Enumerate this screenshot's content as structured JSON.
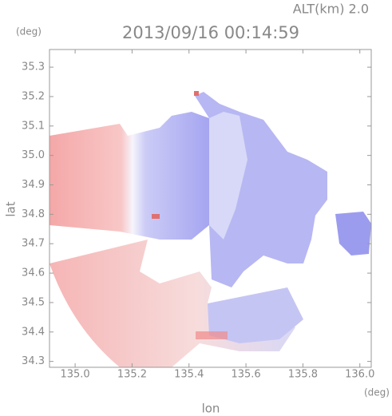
{
  "chart_data": {
    "type": "map",
    "title": "2013/09/16 00:14:59",
    "subtitle": "ALT(km) 2.0",
    "y_unit": "(deg)",
    "x_unit": "(deg)",
    "ylabel": "lat",
    "xlabel": "lon",
    "xlim": [
      134.91,
      136.04
    ],
    "ylim": [
      34.28,
      35.36
    ],
    "xticks": [
      {
        "value": 135.0,
        "label": "135.0"
      },
      135.2,
      135.4,
      135.6,
      135.8,
      {
        "value": 136.0,
        "label": "136.0"
      }
    ],
    "yticks": [
      35.3,
      35.2,
      35.1,
      {
        "value": 35.0,
        "label": "35.0"
      },
      34.9,
      34.8,
      34.7,
      34.6,
      34.5,
      34.4,
      34.3
    ]
  }
}
